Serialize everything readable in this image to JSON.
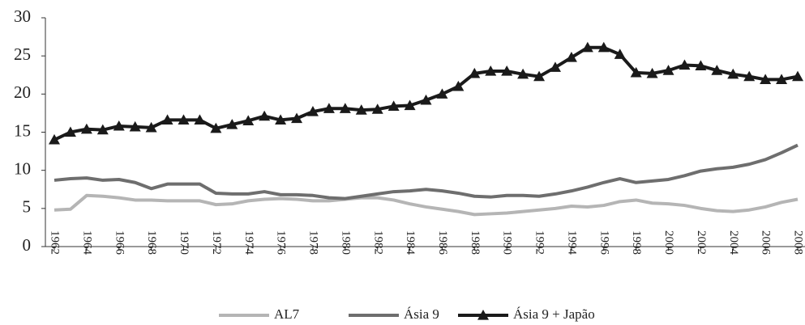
{
  "chart_data": {
    "type": "line",
    "x": [
      1962,
      1963,
      1964,
      1965,
      1966,
      1967,
      1968,
      1969,
      1970,
      1971,
      1972,
      1973,
      1974,
      1975,
      1976,
      1977,
      1978,
      1979,
      1980,
      1981,
      1982,
      1983,
      1984,
      1985,
      1986,
      1987,
      1988,
      1989,
      1990,
      1991,
      1992,
      1993,
      1994,
      1995,
      1996,
      1997,
      1998,
      1999,
      2000,
      2001,
      2002,
      2003,
      2004,
      2005,
      2006,
      2007,
      2008
    ],
    "xlim": [
      1962,
      2008
    ],
    "xticks": [
      1962,
      1964,
      1966,
      1968,
      1970,
      1972,
      1974,
      1976,
      1978,
      1980,
      1982,
      1984,
      1986,
      1988,
      1990,
      1992,
      1994,
      1996,
      1998,
      2000,
      2002,
      2004,
      2006,
      2008
    ],
    "ylim": [
      0,
      30
    ],
    "yticks": [
      0,
      5,
      10,
      15,
      20,
      25,
      30
    ],
    "grid": false,
    "legend": "bottom",
    "series": [
      {
        "name": "AL7",
        "color": "#b5b5b5",
        "marker": "none",
        "values": [
          4.8,
          4.9,
          6.7,
          6.6,
          6.4,
          6.1,
          6.1,
          6.0,
          6.0,
          6.0,
          5.5,
          5.6,
          6.0,
          6.2,
          6.3,
          6.2,
          6.0,
          6.0,
          6.2,
          6.4,
          6.4,
          6.1,
          5.6,
          5.2,
          4.9,
          4.6,
          4.2,
          4.3,
          4.4,
          4.6,
          4.8,
          5.0,
          5.3,
          5.2,
          5.4,
          5.9,
          6.1,
          5.7,
          5.6,
          5.4,
          5.0,
          4.7,
          4.6,
          4.8,
          5.2,
          5.8,
          6.2
        ]
      },
      {
        "name": "Ásia 9",
        "color": "#6e6e6e",
        "marker": "none",
        "values": [
          8.7,
          8.9,
          9.0,
          8.7,
          8.8,
          8.4,
          7.6,
          8.2,
          8.2,
          8.2,
          7.0,
          6.9,
          6.9,
          7.2,
          6.8,
          6.8,
          6.7,
          6.4,
          6.3,
          6.6,
          6.9,
          7.2,
          7.3,
          7.5,
          7.3,
          7.0,
          6.6,
          6.5,
          6.7,
          6.7,
          6.6,
          6.9,
          7.3,
          7.8,
          8.4,
          8.9,
          8.4,
          8.6,
          8.8,
          9.3,
          9.9,
          10.2,
          10.4,
          10.8,
          11.4,
          12.3,
          13.3
        ]
      },
      {
        "name": "Ásia 9 + Japão",
        "color": "#1a1a1a",
        "marker": "triangle",
        "values": [
          14.0,
          15.0,
          15.4,
          15.3,
          15.8,
          15.7,
          15.6,
          16.6,
          16.6,
          16.6,
          15.5,
          16.0,
          16.5,
          17.1,
          16.6,
          16.8,
          17.7,
          18.1,
          18.1,
          17.9,
          18.0,
          18.4,
          18.5,
          19.2,
          20.0,
          21.0,
          22.7,
          23.0,
          23.0,
          22.6,
          22.3,
          23.5,
          24.8,
          26.1,
          26.1,
          25.2,
          22.8,
          22.7,
          23.1,
          23.8,
          23.7,
          23.1,
          22.6,
          22.3,
          21.9,
          21.9,
          22.3
        ]
      }
    ]
  }
}
